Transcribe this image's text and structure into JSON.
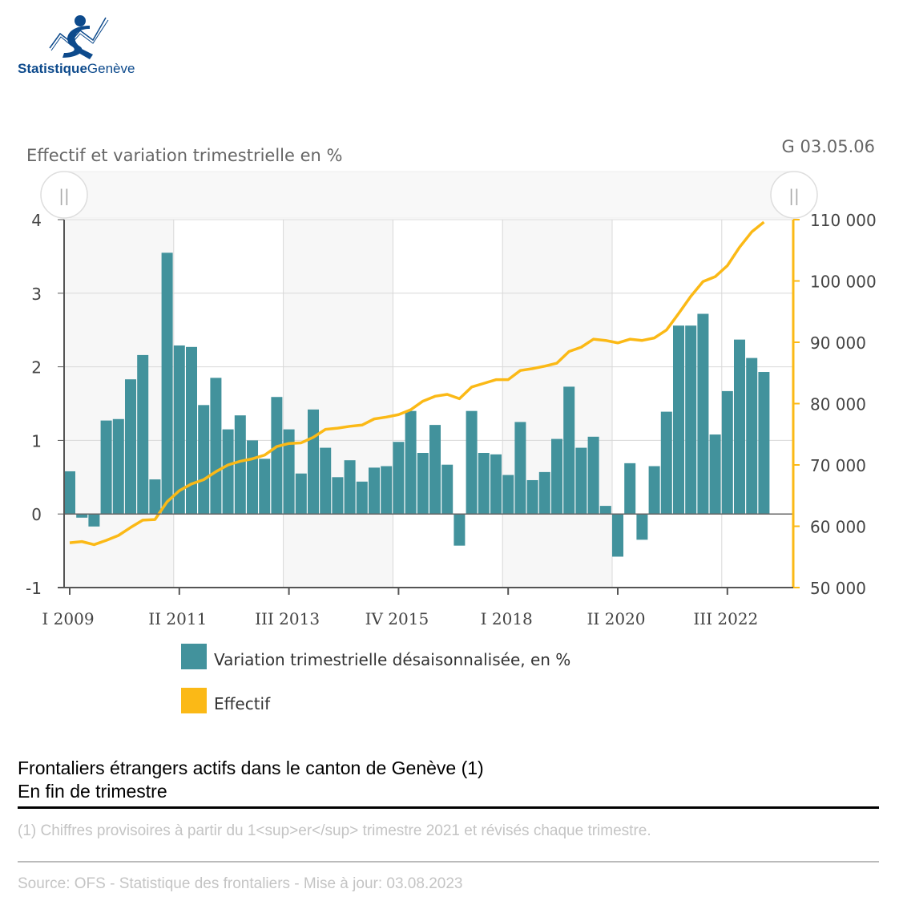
{
  "logo": {
    "bold": "Statistique",
    "regular": "Genève"
  },
  "chart_code": "G 03.05.06",
  "footer": {
    "title_line1": "Frontaliers étrangers actifs dans le canton de Genève (1)",
    "title_line2": "En fin de trimestre",
    "note": "(1) Chiffres provisoires à partir du 1<sup>er</sup> trimestre 2021 et révisés chaque trimestre.",
    "source": "Source: OFS - Statistique des frontaliers  - Mise à jour: 03.08.2023"
  },
  "colors": {
    "bars": "#42929c",
    "line": "#fbb916",
    "grid": "#d8d8d8",
    "band": "#f7f7f7"
  },
  "chart_data": {
    "type": "bar+line",
    "title": "Effectif et variation trimestrielle en %",
    "x_tick_labels": [
      "I 2009",
      "II 2011",
      "III 2013",
      "IV 2015",
      "I 2018",
      "II 2020",
      "III 2022"
    ],
    "x_range": [
      "I 2009",
      "II 2023"
    ],
    "y_left": {
      "ticks": [
        "4",
        "3",
        "2",
        "1",
        "0",
        "-1"
      ],
      "range": [
        -1,
        4
      ]
    },
    "y_right": {
      "ticks": [
        "110 000",
        "100 000",
        "90 000",
        "80 000",
        "70 000",
        "60 000",
        "50 000"
      ],
      "range": [
        50000,
        110000
      ]
    },
    "grid": true,
    "legend_position": "bottom",
    "series": [
      {
        "name": "Variation trimestrielle désaisonnalisée, en %",
        "type": "bar",
        "axis": "left",
        "values": [
          0.58,
          -0.05,
          -0.17,
          1.27,
          1.29,
          1.83,
          2.16,
          0.47,
          3.55,
          2.29,
          2.27,
          1.48,
          1.85,
          1.15,
          1.34,
          1.0,
          0.75,
          1.59,
          1.15,
          0.55,
          1.42,
          0.9,
          0.5,
          0.73,
          0.44,
          0.63,
          0.65,
          0.98,
          1.4,
          0.83,
          1.21,
          0.67,
          -0.43,
          1.4,
          0.83,
          0.81,
          0.53,
          1.25,
          0.46,
          0.57,
          1.02,
          1.73,
          0.9,
          1.05,
          0.11,
          -0.58,
          0.69,
          -0.35,
          0.65,
          1.39,
          2.56,
          2.56,
          2.72,
          1.08,
          1.67,
          2.37,
          2.12,
          1.93
        ]
      },
      {
        "name": "Effectif",
        "type": "line",
        "axis": "right",
        "values": [
          57300,
          57500,
          57000,
          57700,
          58500,
          59800,
          61000,
          61100,
          64000,
          65800,
          66900,
          67600,
          68900,
          70000,
          70600,
          71000,
          71600,
          73000,
          73500,
          73600,
          74500,
          75800,
          76000,
          76300,
          76500,
          77500,
          77800,
          78200,
          79000,
          80400,
          81200,
          81500,
          80800,
          82700,
          83300,
          83900,
          83900,
          85400,
          85700,
          86100,
          86600,
          88500,
          89200,
          90500,
          90300,
          89900,
          90500,
          90300,
          90700,
          92000,
          94700,
          97500,
          99900,
          100700,
          102500,
          105500,
          108000,
          109600
        ]
      }
    ]
  }
}
